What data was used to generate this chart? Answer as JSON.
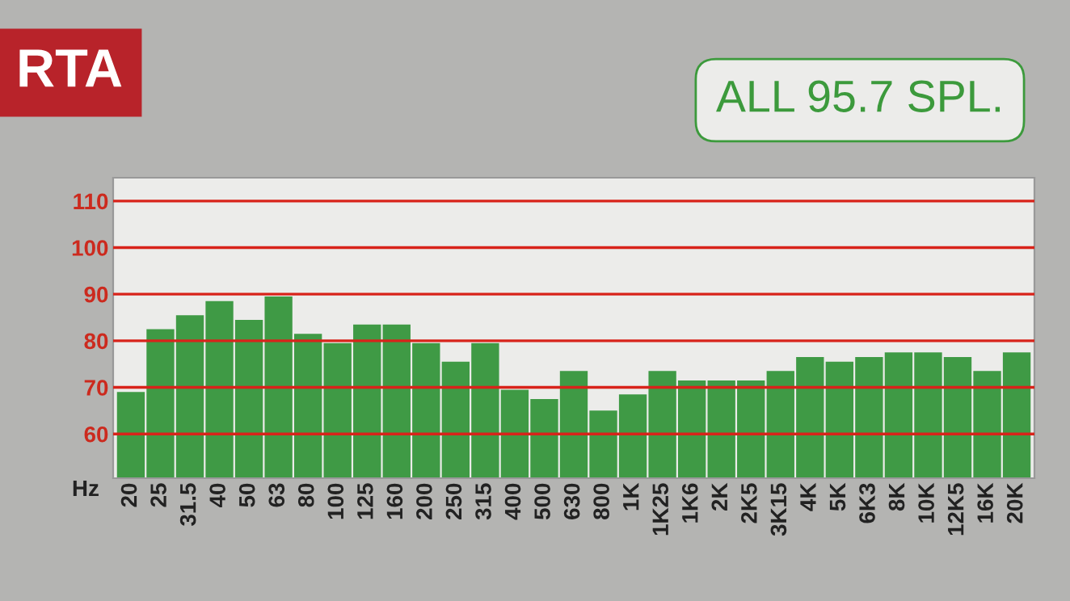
{
  "chart_data": {
    "type": "bar",
    "title": "RTA",
    "xlabel": "Hz",
    "annotations": [
      "ALL 95.7 SPL."
    ],
    "categories": [
      "20",
      "25",
      "31.5",
      "40",
      "50",
      "63",
      "80",
      "100",
      "125",
      "160",
      "200",
      "250",
      "315",
      "400",
      "500",
      "630",
      "800",
      "1K",
      "1K25",
      "1K6",
      "2K",
      "2K5",
      "3K15",
      "4K",
      "5K",
      "6K3",
      "8K",
      "10K",
      "12K5",
      "16K",
      "20K"
    ],
    "values": [
      69,
      82.5,
      85.5,
      88.5,
      84.5,
      89.5,
      81.5,
      79.5,
      83.5,
      83.5,
      79.5,
      75.5,
      79.5,
      69.5,
      67.5,
      73.5,
      65,
      68.5,
      73.5,
      71.5,
      71.5,
      71.5,
      73.5,
      76.5,
      75.5,
      76.5,
      77.5,
      77.5,
      76.5,
      73.5,
      77.5
    ],
    "color": "#3f9a45",
    "ylim": [
      50.5,
      115
    ],
    "yticks": [
      60,
      70,
      80,
      90,
      100,
      110
    ],
    "grid": "y",
    "legend": false
  }
}
